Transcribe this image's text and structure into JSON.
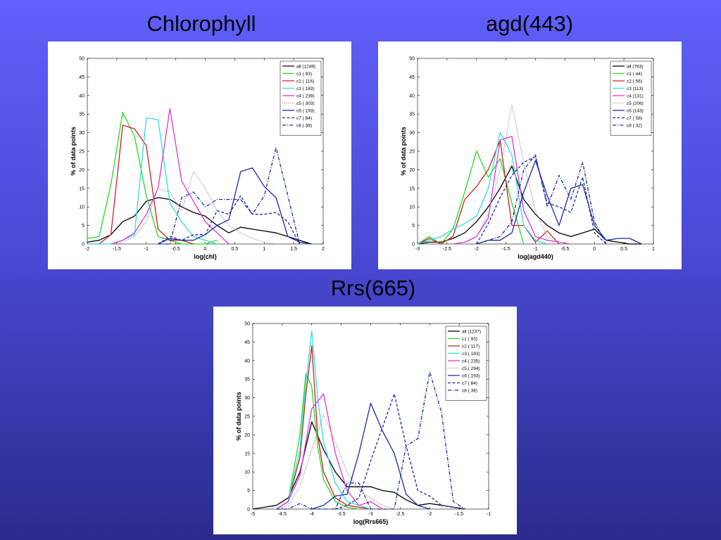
{
  "slide": {
    "titles": [
      "Chlorophyll",
      "agd(443)",
      "Rrs(665)"
    ]
  },
  "colors": {
    "background_top": "#6060fc",
    "background_bottom": "#2b2b8c",
    "series": {
      "all": "#000000",
      "c1": "#22dd22",
      "c2": "#cc2222",
      "c3": "#33dddd",
      "c4": "#dd33dd",
      "c5": "#9999aa",
      "c6": "#1a2aa8",
      "c7": "#1a2aa8",
      "c8": "#1a2aa8"
    }
  },
  "chart_data": [
    {
      "type": "line",
      "title": "Chlorophyll",
      "xlabel": "log(chl)",
      "ylabel": "% of data points",
      "xlim": [
        -2,
        2
      ],
      "ylim": [
        0,
        50
      ],
      "xticks": [
        -2,
        -1.5,
        -1,
        -0.5,
        0,
        0.5,
        1,
        1.5,
        2
      ],
      "xtick_labels": [
        "-2",
        "-1.5",
        "-1",
        "-0.5",
        "0",
        "0.5",
        "1",
        "1.5",
        "2"
      ],
      "yticks": [
        0,
        5,
        10,
        15,
        20,
        25,
        30,
        35,
        40,
        45,
        50
      ],
      "legend_position": "top-right",
      "grid": false,
      "series": [
        {
          "name": "all (1249)",
          "key": "all",
          "style": "solid",
          "x": [
            -2,
            -1.8,
            -1.6,
            -1.4,
            -1.2,
            -1,
            -0.8,
            -0.6,
            -0.4,
            -0.2,
            0,
            0.2,
            0.4,
            0.6,
            0.8,
            1,
            1.2,
            1.4,
            1.6,
            1.8
          ],
          "y": [
            0.5,
            1,
            2.5,
            6,
            7.5,
            11.5,
            12.5,
            12,
            10,
            8.5,
            7.5,
            5,
            3,
            4.5,
            4,
            3.5,
            3,
            2,
            1,
            0
          ]
        },
        {
          "name": "c1 ( 93)",
          "key": "c1",
          "style": "solid",
          "x": [
            -2,
            -1.8,
            -1.6,
            -1.4,
            -1.2,
            -1,
            -0.8,
            -0.6,
            -0.4,
            -0.2,
            0,
            0.2
          ],
          "y": [
            1.5,
            2,
            16,
            35.5,
            29,
            13,
            2,
            1,
            0,
            0,
            0,
            1
          ]
        },
        {
          "name": "c2 ( 116)",
          "key": "c2",
          "style": "solid",
          "x": [
            -2,
            -1.8,
            -1.6,
            -1.4,
            -1.2,
            -1,
            -0.8,
            -0.6,
            -0.4,
            -0.2
          ],
          "y": [
            0,
            0,
            2.5,
            32,
            31,
            26.5,
            4,
            1,
            1,
            0
          ]
        },
        {
          "name": "c3 ( 183)",
          "key": "c3",
          "style": "solid",
          "x": [
            -2,
            -1.8,
            -1.6,
            -1.4,
            -1.2,
            -1,
            -0.8,
            -0.6,
            -0.4,
            -0.2,
            0,
            0.2
          ],
          "y": [
            0,
            0,
            0,
            1,
            2.5,
            34,
            33.5,
            11,
            6,
            2,
            1,
            0
          ]
        },
        {
          "name": "c4 ( 239)",
          "key": "c4",
          "style": "solid",
          "x": [
            -1.6,
            -1.4,
            -1.2,
            -1,
            -0.8,
            -0.6,
            -0.4,
            -0.2,
            0,
            0.2,
            0.4
          ],
          "y": [
            0,
            1,
            3,
            8,
            15,
            36.5,
            17,
            11.5,
            6,
            3,
            0
          ]
        },
        {
          "name": "c5 ( 303)",
          "key": "c5",
          "style": "dotted",
          "x": [
            -1.6,
            -1.4,
            -1.2,
            -1,
            -0.8,
            -0.6,
            -0.4,
            -0.2,
            0,
            0.2,
            0.4,
            0.6,
            0.8,
            1,
            1.2
          ],
          "y": [
            0,
            0.5,
            2,
            6,
            15,
            14,
            9,
            19.5,
            15,
            9,
            5,
            3,
            1.5,
            0.5,
            0
          ]
        },
        {
          "name": "c6 ( 193)",
          "key": "c6",
          "style": "solid",
          "x": [
            -0.8,
            -0.6,
            -0.4,
            -0.2,
            0,
            0.2,
            0.4,
            0.6,
            0.8,
            1,
            1.2,
            1.4,
            1.6,
            1.8
          ],
          "y": [
            0,
            1.5,
            1,
            1,
            2.5,
            5,
            6.5,
            19.5,
            20.5,
            15.5,
            12.5,
            2,
            0.5,
            0
          ]
        },
        {
          "name": "c7 ( 84)",
          "key": "c7",
          "style": "dashed",
          "x": [
            -0.8,
            -0.6,
            -0.4,
            -0.2,
            0,
            0.2,
            0.4,
            0.6,
            0.8,
            1,
            1.2,
            1.4,
            1.6
          ],
          "y": [
            0,
            2,
            1,
            2.5,
            2.5,
            9,
            8,
            13,
            8,
            8,
            8.5,
            6,
            0
          ]
        },
        {
          "name": "c8 ( 38)",
          "key": "c8",
          "style": "dashdot",
          "x": [
            -0.8,
            -0.6,
            -0.4,
            -0.2,
            0,
            0.2,
            0.4,
            0.6,
            0.8,
            1,
            1.2,
            1.4,
            1.6
          ],
          "y": [
            0,
            0,
            12.5,
            14,
            10,
            12,
            12,
            12,
            8,
            13,
            26,
            13,
            0
          ]
        }
      ]
    },
    {
      "type": "line",
      "title": "agd(443)",
      "xlabel": "log(agd440)",
      "ylabel": "% of data points",
      "xlim": [
        -3,
        1
      ],
      "ylim": [
        0,
        50
      ],
      "xticks": [
        -3,
        -2.5,
        -2,
        -1.5,
        -1,
        -0.5,
        0,
        0.5,
        1
      ],
      "xtick_labels": [
        "-3",
        "-2.5",
        "-2",
        "-1.5",
        "-1",
        "-0.5",
        "0",
        "0.5",
        "1"
      ],
      "yticks": [
        0,
        5,
        10,
        15,
        20,
        25,
        30,
        35,
        40,
        45,
        50
      ],
      "legend_position": "top-right",
      "grid": false,
      "series": [
        {
          "name": "all (763)",
          "key": "all",
          "style": "solid",
          "x": [
            -3,
            -2.8,
            -2.6,
            -2.4,
            -2.2,
            -2,
            -1.8,
            -1.6,
            -1.4,
            -1.2,
            -1,
            -0.8,
            -0.6,
            -0.4,
            -0.2,
            0,
            0.2,
            0.4,
            0.6,
            0.8
          ],
          "y": [
            0,
            0.5,
            0.5,
            1.5,
            3,
            6,
            10,
            15,
            21,
            12,
            8,
            5,
            3,
            2,
            3,
            4,
            1,
            0.5,
            0,
            0
          ]
        },
        {
          "name": "c1 ( 44)",
          "key": "c1",
          "style": "solid",
          "x": [
            -3,
            -2.8,
            -2.6,
            -2.4,
            -2.2,
            -2,
            -1.8,
            -1.6,
            -1.4,
            -1.2
          ],
          "y": [
            0,
            2,
            0,
            4,
            14,
            25,
            18,
            23,
            11,
            0
          ]
        },
        {
          "name": "c2 ( 56)",
          "key": "c2",
          "style": "solid",
          "x": [
            -3,
            -2.8,
            -2.6,
            -2.4,
            -2.2,
            -2,
            -1.8,
            -1.6,
            -1.4,
            -1.2,
            -1,
            -0.8,
            -0.6
          ],
          "y": [
            0,
            1.5,
            0,
            2,
            12,
            15.5,
            20,
            28,
            5,
            5,
            0.5,
            3.5,
            0
          ]
        },
        {
          "name": "c3 (113)",
          "key": "c3",
          "style": "solid",
          "x": [
            -3,
            -2.8,
            -2.6,
            -2.4,
            -2.2,
            -2,
            -1.8,
            -1.6,
            -1.4,
            -1.2,
            -1,
            -0.8
          ],
          "y": [
            0,
            1,
            2,
            4,
            5.5,
            7.5,
            15,
            30,
            24,
            5,
            1,
            0
          ]
        },
        {
          "name": "c4 (131)",
          "key": "c4",
          "style": "solid",
          "x": [
            -2.4,
            -2.2,
            -2,
            -1.8,
            -1.6,
            -1.4,
            -1.2,
            -1,
            -0.8,
            -0.6,
            -0.4
          ],
          "y": [
            0,
            0.5,
            2,
            7,
            28,
            29,
            9,
            2,
            1,
            0.5,
            0
          ]
        },
        {
          "name": "c5 (206)",
          "key": "c5",
          "style": "dotted",
          "x": [
            -2.2,
            -2,
            -1.8,
            -1.6,
            -1.4,
            -1.2,
            -1,
            -0.8,
            -0.6,
            -0.4
          ],
          "y": [
            0,
            2,
            8,
            20,
            37.5,
            22,
            9,
            2,
            0.5,
            0
          ]
        },
        {
          "name": "c6 (143)",
          "key": "c6",
          "style": "solid",
          "x": [
            -2,
            -1.8,
            -1.6,
            -1.4,
            -1.2,
            -1,
            -0.8,
            -0.6,
            -0.4,
            -0.2,
            0,
            0.2,
            0.4,
            0.6,
            0.8
          ],
          "y": [
            0,
            1,
            1,
            3,
            14,
            22.5,
            13,
            5,
            15,
            16,
            5,
            1,
            1.5,
            1.5,
            0
          ]
        },
        {
          "name": "c7 ( 58)",
          "key": "c7",
          "style": "dashed",
          "x": [
            -2,
            -1.8,
            -1.6,
            -1.4,
            -1.2,
            -1,
            -0.8,
            -0.6,
            -0.4,
            -0.2,
            0,
            0.2
          ],
          "y": [
            0,
            5.5,
            12.5,
            18.5,
            22,
            23.5,
            11,
            10,
            8.5,
            18,
            3,
            0
          ]
        },
        {
          "name": "c8 ( 32)",
          "key": "c8",
          "style": "dashdot",
          "x": [
            -2,
            -1.8,
            -1.6,
            -1.4,
            -1.2,
            -1,
            -0.8,
            -0.6,
            -0.4,
            -0.2,
            0,
            0.2
          ],
          "y": [
            0,
            1,
            2,
            6,
            20,
            24,
            10,
            18.5,
            12,
            22,
            6,
            0
          ]
        }
      ]
    },
    {
      "type": "line",
      "title": "Rrs(665)",
      "xlabel": "log(Rrs665)",
      "ylabel": "% of data points",
      "xlim": [
        -5,
        -1
      ],
      "ylim": [
        0,
        50
      ],
      "xticks": [
        -5,
        -4.5,
        -4,
        -3.5,
        -3,
        -2.5,
        -2,
        -1.5,
        -1
      ],
      "xtick_labels": [
        "-5",
        "-4.5",
        "-4",
        "-3.5",
        "-3",
        "-2.5",
        "-2",
        "-1.5",
        "-1"
      ],
      "yticks": [
        0,
        5,
        10,
        15,
        20,
        25,
        30,
        35,
        40,
        45,
        50
      ],
      "legend_position": "top-right",
      "grid": false,
      "series": [
        {
          "name": "all (1237)",
          "key": "all",
          "style": "solid",
          "x": [
            -5,
            -4.8,
            -4.6,
            -4.4,
            -4.2,
            -4,
            -3.8,
            -3.6,
            -3.4,
            -3.2,
            -3,
            -2.8,
            -2.6,
            -2.4,
            -2.2,
            -2,
            -1.8,
            -1.6,
            -1.4
          ],
          "y": [
            0,
            0.5,
            1,
            3,
            10,
            23.5,
            16,
            10,
            6,
            6,
            6,
            5,
            4.5,
            2.5,
            1,
            1.5,
            1,
            0.5,
            0
          ]
        },
        {
          "name": "c1 ( 93)",
          "key": "c1",
          "style": "solid",
          "x": [
            -4.6,
            -4.4,
            -4.2,
            -4.1,
            -4,
            -3.9,
            -3.8,
            -3.6,
            -3.4,
            -3.2
          ],
          "y": [
            0,
            2,
            20,
            36.5,
            33,
            17,
            8,
            2,
            0.5,
            0
          ]
        },
        {
          "name": "c2 ( 117)",
          "key": "c2",
          "style": "solid",
          "x": [
            -4.6,
            -4.4,
            -4.2,
            -4.1,
            -4,
            -3.9,
            -3.8,
            -3.6,
            -3.4,
            -3.2,
            -3
          ],
          "y": [
            0,
            2,
            14,
            31,
            44,
            20,
            10,
            3,
            1,
            0.5,
            0
          ]
        },
        {
          "name": "c3 ( 183)",
          "key": "c3",
          "style": "solid",
          "x": [
            -4.6,
            -4.4,
            -4.2,
            -4.1,
            -4,
            -3.9,
            -3.8,
            -3.6,
            -3.4,
            -3.2,
            -3
          ],
          "y": [
            0,
            2,
            16,
            34,
            48,
            30,
            18,
            7,
            2,
            1,
            0
          ]
        },
        {
          "name": "c4 ( 235)",
          "key": "c4",
          "style": "solid",
          "x": [
            -4.6,
            -4.4,
            -4.2,
            -4,
            -3.8,
            -3.6,
            -3.4,
            -3.2,
            -3,
            -2.8
          ],
          "y": [
            0,
            2,
            9,
            27,
            31,
            15,
            5,
            1,
            2,
            0
          ]
        },
        {
          "name": "c5 ( 294)",
          "key": "c5",
          "style": "dotted",
          "x": [
            -4.6,
            -4.4,
            -4.2,
            -4,
            -3.8,
            -3.6,
            -3.4,
            -3.2,
            -3,
            -2.8,
            -2.6
          ],
          "y": [
            0,
            1,
            6,
            16,
            25.5,
            18,
            10,
            5,
            3,
            1,
            0
          ]
        },
        {
          "name": "c6 ( 193)",
          "key": "c6",
          "style": "solid",
          "x": [
            -4,
            -3.8,
            -3.6,
            -3.4,
            -3.2,
            -3,
            -2.8,
            -2.6,
            -2.4,
            -2.2,
            -2
          ],
          "y": [
            0,
            1,
            3.5,
            4,
            15,
            28.5,
            21,
            15,
            4,
            1,
            0
          ]
        },
        {
          "name": "c7 ( 84)",
          "key": "c7",
          "style": "dashed",
          "x": [
            -3.6,
            -3.4,
            -3.2,
            -3,
            -2.8,
            -2.6,
            -2.4,
            -2.2,
            -2,
            -1.8,
            -1.6,
            -1.4
          ],
          "y": [
            0,
            1,
            3,
            13,
            22,
            31,
            17,
            5,
            3.5,
            1,
            0.5,
            0
          ]
        },
        {
          "name": "c8 ( 38)",
          "key": "c8",
          "style": "dashdot",
          "x": [
            -4.6,
            -4.4,
            -4.2,
            -4,
            -3.8,
            -3.6,
            -3.4,
            -3.2,
            -3,
            -2.8,
            -2.6,
            -2.4,
            -2.2,
            -2,
            -1.8,
            -1.6,
            -1.4
          ],
          "y": [
            0,
            0,
            1.5,
            0,
            0,
            0,
            7,
            7,
            0,
            0,
            0,
            17,
            19,
            37,
            26,
            2,
            0
          ]
        }
      ]
    }
  ]
}
